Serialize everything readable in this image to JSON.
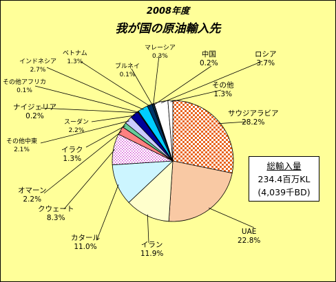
{
  "title_year": "2008年度",
  "title": "我が国の原油輸入先",
  "total_box": {
    "heading": "総輸入量",
    "amount": "234.4百万KL",
    "bd": "(4,039千BD)"
  },
  "chart_data": {
    "type": "pie",
    "title": "我が国の原油輸入先",
    "subtitle": "2008年度",
    "unit": "%",
    "slices": [
      {
        "label": "サウジアラビア",
        "value": 28.2,
        "value_label": "28.2%",
        "color": "#e8641e",
        "pattern": "checker"
      },
      {
        "label": "UAE",
        "value": 22.8,
        "value_label": "22.8%",
        "color": "#f9c9a4"
      },
      {
        "label": "イラン",
        "value": 11.9,
        "value_label": "11.9%",
        "color": "#ffffcc"
      },
      {
        "label": "カタール",
        "value": 11.0,
        "value_label": "11.0%",
        "color": "#ccf5ff"
      },
      {
        "label": "クウェート",
        "value": 8.3,
        "value_label": "8.3%",
        "color": "#ff99ff",
        "pattern": "dots"
      },
      {
        "label": "オマーン",
        "value": 2.2,
        "value_label": "2.2%",
        "color": "#ff8080"
      },
      {
        "label": "イラク",
        "value": 1.3,
        "value_label": "1.3%",
        "color": "#66cc99"
      },
      {
        "label": "その他中東",
        "value": 2.1,
        "value_label": "2.1%",
        "color": "#ccccff"
      },
      {
        "label": "スーダン",
        "value": 2.2,
        "value_label": "2.2%",
        "color": "#000099"
      },
      {
        "label": "ナイジェリア",
        "value": 0.2,
        "value_label": "0.2%",
        "color": "#9999ff"
      },
      {
        "label": "その他アフリカ",
        "value": 0.1,
        "value_label": "0.1%",
        "color": "#cc0000"
      },
      {
        "label": "インドネシア",
        "value": 2.7,
        "value_label": "2.7%",
        "color": "#00ccff"
      },
      {
        "label": "ベトナム",
        "value": 1.3,
        "value_label": "1.3%",
        "color": "#003366"
      },
      {
        "label": "ブルネイ",
        "value": 0.1,
        "value_label": "0.1%",
        "color": "#ffffff"
      },
      {
        "label": "マレーシア",
        "value": 0.3,
        "value_label": "0.3%",
        "color": "#006699"
      },
      {
        "label": "中国",
        "value": 0.2,
        "value_label": "0.2%",
        "color": "#993366"
      },
      {
        "label": "ロシア",
        "value": 3.7,
        "value_label": "3.7%",
        "color": "#ffffff"
      },
      {
        "label": "その他",
        "value": 1.3,
        "value_label": "1.3%",
        "color": "#ffffff"
      }
    ]
  }
}
